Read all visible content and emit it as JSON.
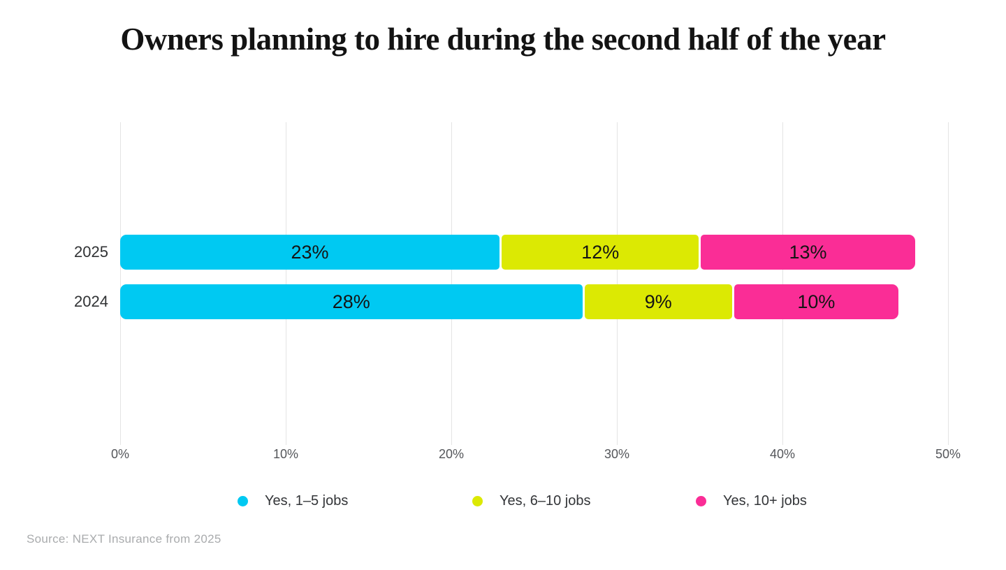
{
  "title": "Owners planning to hire during the second half of the year",
  "source_note": "Source: NEXT Insurance from 2025",
  "colors": {
    "background": "#FFFFFF",
    "series_cyan": "#00C9F2",
    "series_yellow": "#DCE903",
    "series_pink": "#FA2D96",
    "gridline": "#E4E4E4",
    "bar_value_text": "#141414",
    "axis_text": "#54565A",
    "source_text": "#A9ABAD"
  },
  "chart_data": {
    "type": "bar",
    "orientation": "horizontal",
    "stacked": true,
    "title": "Owners planning to hire during the second half of the year",
    "categories": [
      "2025",
      "2024"
    ],
    "series": [
      {
        "name": "Yes, 1–5 jobs",
        "color": "#00C9F2",
        "values": [
          23,
          28
        ]
      },
      {
        "name": "Yes, 6–10 jobs",
        "color": "#DCE903",
        "values": [
          12,
          9
        ]
      },
      {
        "name": "Yes, 10+ jobs",
        "color": "#FA2D96",
        "values": [
          13,
          10
        ]
      }
    ],
    "totals": [
      48,
      47
    ],
    "value_suffix": "%",
    "xlabel": "",
    "ylabel": "",
    "xlim": [
      0,
      50
    ],
    "xticks": {
      "values": [
        0,
        10,
        20,
        30,
        40,
        50
      ],
      "labels": [
        "0%",
        "10%",
        "20%",
        "30%",
        "40%",
        "50%"
      ]
    },
    "grid": true,
    "legend_position": "bottom"
  }
}
